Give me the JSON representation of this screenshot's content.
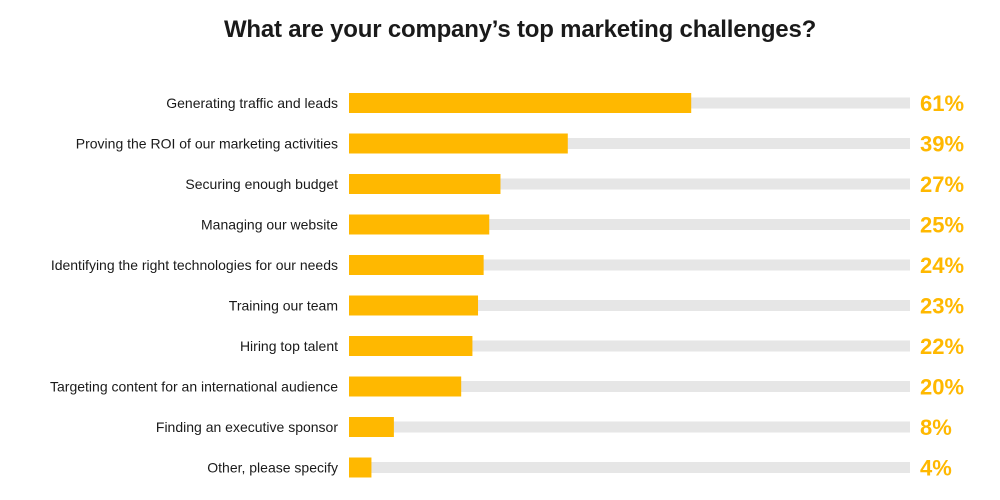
{
  "chart_data": {
    "type": "bar",
    "orientation": "horizontal",
    "title": "What are your company’s top marketing challenges?",
    "categories": [
      "Generating traffic and leads",
      "Proving the ROI of our marketing activities",
      "Securing enough budget",
      "Managing our website",
      "Identifying the right technologies for our needs",
      "Training our team",
      "Hiring top talent",
      "Targeting content for an international audience",
      "Finding an executive sponsor",
      "Other, please specify"
    ],
    "values": [
      61,
      39,
      27,
      25,
      24,
      23,
      22,
      20,
      8,
      4
    ],
    "value_labels": [
      "61%",
      "39%",
      "27%",
      "25%",
      "24%",
      "23%",
      "22%",
      "20%",
      "8%",
      "4%"
    ],
    "xlim": [
      0,
      100
    ],
    "unit": "%",
    "grid": false,
    "legend": "none",
    "colors": {
      "bar": "#FFB800",
      "track": "#E6E6E6",
      "value_label": "#FFB800",
      "category_label": "#1a1a1a"
    }
  }
}
